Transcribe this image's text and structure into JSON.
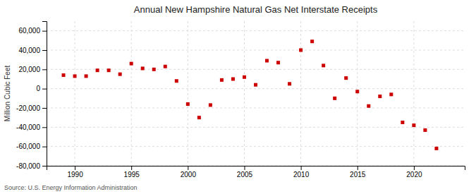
{
  "chart_data": {
    "type": "scatter",
    "title": "Annual New Hampshire Natural Gas Net Interstate Receipts",
    "ylabel": "Million Cubic Feet",
    "source": "Source: U.S. Energy Information Administration",
    "x": [
      1989,
      1990,
      1991,
      1992,
      1993,
      1994,
      1995,
      1996,
      1997,
      1998,
      1999,
      2000,
      2001,
      2002,
      2003,
      2004,
      2005,
      2006,
      2007,
      2008,
      2009,
      2010,
      2011,
      2012,
      2013,
      2014,
      2015,
      2016,
      2017,
      2018,
      2019,
      2020,
      2021,
      2022
    ],
    "values": [
      14000,
      13000,
      13000,
      19000,
      19000,
      15000,
      26000,
      21000,
      20000,
      23000,
      8000,
      -16000,
      -30000,
      -17000,
      9000,
      10000,
      12000,
      4000,
      29000,
      27000,
      5000,
      40000,
      49000,
      24000,
      -10000,
      11000,
      -3000,
      -18000,
      -8000,
      -6000,
      -35000,
      -38000,
      -43000,
      -62000
    ],
    "color": "#cc0000",
    "marker": "square",
    "grid": true,
    "xlim": [
      1987.5,
      2024.5
    ],
    "xticks": [
      1990,
      1995,
      2000,
      2005,
      2010,
      2015,
      2020
    ],
    "ylim": [
      -80000,
      70000
    ],
    "yticks": [
      {
        "value": -80000,
        "label": "-80,000"
      },
      {
        "value": -60000,
        "label": "-60,000"
      },
      {
        "value": -40000,
        "label": "-40,000"
      },
      {
        "value": -20000,
        "label": "-20,000"
      },
      0,
      {
        "value": 20000,
        "label": "20,000"
      },
      {
        "value": 40000,
        "label": "40,000"
      },
      {
        "value": 60000,
        "label": "60,000"
      }
    ]
  }
}
